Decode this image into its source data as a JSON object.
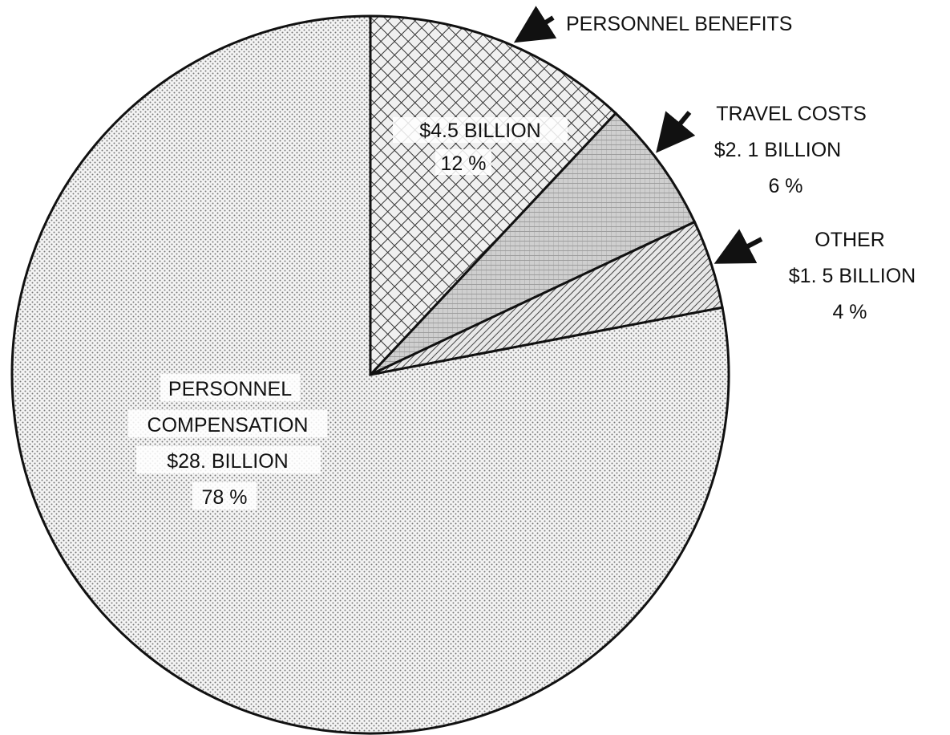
{
  "chart_data": {
    "type": "pie",
    "slices": [
      {
        "name": "PERSONNEL BENEFITS",
        "value_text": "$4.5 BILLION",
        "value": 4.5,
        "percent_text": "12 %",
        "percent": 12,
        "pattern": "crosshatch"
      },
      {
        "name": "TRAVEL COSTS",
        "value_text": "$2. 1 BILLION",
        "value": 2.1,
        "percent_text": "6 %",
        "percent": 6,
        "pattern": "grid"
      },
      {
        "name": "OTHER",
        "value_text": "$1. 5 BILLION",
        "value": 1.5,
        "percent_text": "4 %",
        "percent": 4,
        "pattern": "diagonal"
      },
      {
        "name": "PERSONNEL COMPENSATION",
        "name_lines": [
          "PERSONNEL",
          "COMPENSATION"
        ],
        "value_text": "$28. BILLION",
        "value": 28,
        "percent_text": "78 %",
        "percent": 78,
        "pattern": "dots"
      }
    ],
    "start": "12 o'clock",
    "direction": "clockwise",
    "legend": "none"
  }
}
